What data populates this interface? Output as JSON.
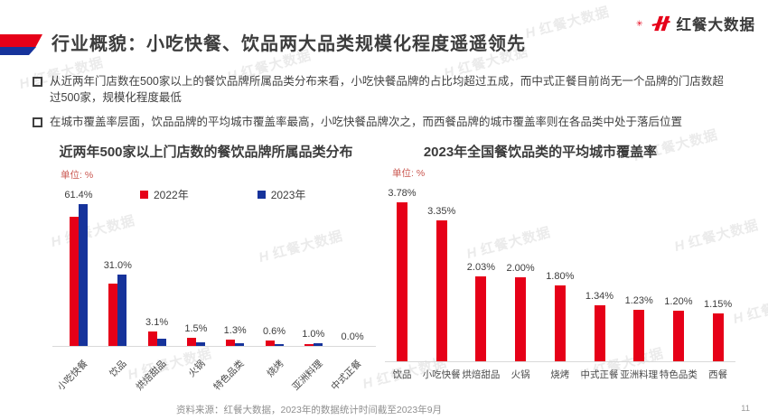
{
  "header": {
    "title": "行业概貌：小吃快餐、饮品两大品类规模化程度遥遥领先",
    "logo_text": "红餐大数据"
  },
  "watermark_text": "红餐大数据",
  "bullets": [
    "从近两年门店数在500家以上的餐饮品牌所属品类分布来看，小吃快餐品牌的占比均超过五成，而中式正餐目前尚无一个品牌的门店数超过500家，规模化程度最低",
    "在城市覆盖率层面，饮品品牌的平均城市覆盖率最高，小吃快餐品牌次之，而西餐品牌的城市覆盖率则在各品类中处于落后位置"
  ],
  "colors": {
    "brand_red": "#E60018",
    "deep_blue": "#16339B",
    "unit_label_red": "#C9554E",
    "axis_gray": "#d9d9d9"
  },
  "chart_data": [
    {
      "type": "bar",
      "title": "近两年500家以上门店数的餐饮品牌所属品类分布",
      "unit_label": "单位: %",
      "categories": [
        "小吃快餐",
        "饮品",
        "烘焙甜品",
        "火锅",
        "特色品类",
        "烧烤",
        "亚洲料理",
        "中式正餐"
      ],
      "series": [
        {
          "name": "2022年",
          "color": "#E60018",
          "values": [
            56.0,
            26.8,
            6.2,
            3.4,
            2.9,
            2.5,
            0.6,
            0.0
          ]
        },
        {
          "name": "2023年",
          "color": "#16339B",
          "values": [
            61.4,
            31.0,
            3.1,
            1.5,
            1.3,
            0.6,
            1.0,
            0.0
          ],
          "labels": [
            "61.4%",
            "31.0%",
            "3.1%",
            "1.5%",
            "1.3%",
            "0.6%",
            "1.0%",
            "0.0%"
          ]
        }
      ],
      "labels_shown_for_series": "2023年",
      "ylim": [
        0,
        65
      ],
      "grid": false,
      "legend_position": "top"
    },
    {
      "type": "bar",
      "title": "2023年全国餐饮品类的平均城市覆盖率",
      "unit_label": "单位: %",
      "categories": [
        "饮品",
        "小吃快餐",
        "烘焙甜品",
        "火锅",
        "烧烤",
        "中式正餐",
        "亚洲料理",
        "特色品类",
        "西餐"
      ],
      "values": [
        3.78,
        3.35,
        2.03,
        2.0,
        1.8,
        1.34,
        1.23,
        1.2,
        1.15
      ],
      "labels": [
        "3.78%",
        "3.35%",
        "2.03%",
        "2.00%",
        "1.80%",
        "1.34%",
        "1.23%",
        "1.20%",
        "1.15%"
      ],
      "bar_color": "#E60018",
      "ylim": [
        0,
        4
      ],
      "grid": false
    }
  ],
  "footer": {
    "source": "资料来源：红餐大数据，2023年的数据统计时间截至2023年9月",
    "page_number": "11"
  }
}
